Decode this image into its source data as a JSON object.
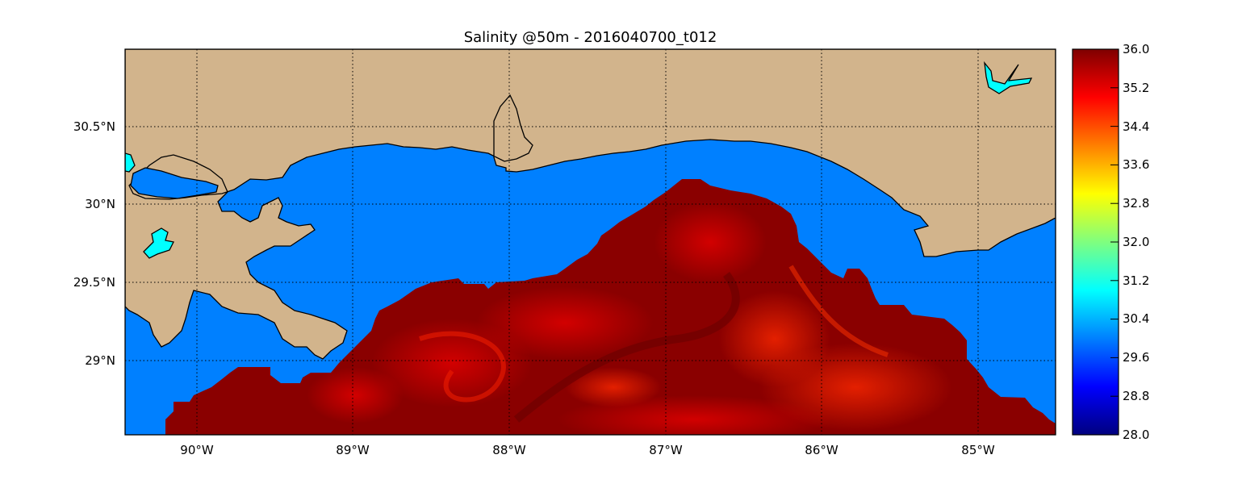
{
  "title": "Salinity @50m - 2016040700_t012",
  "map": {
    "lon_range": [
      -90.5,
      -84.5
    ],
    "lat_range": [
      28.55,
      31.0
    ],
    "lon_ticks": [
      "90°W",
      "89°W",
      "88°W",
      "87°W",
      "86°W",
      "85°W"
    ],
    "lat_ticks": [
      "30.5°N",
      "30°N",
      "29.5°N",
      "29°N"
    ],
    "grid": "dotted",
    "colors": {
      "land": "#d2b48c",
      "water_fill": "#0080ff",
      "lake_fill": "#00ffff",
      "salinity_high": "#800000",
      "salinity_mid": "#cc0000"
    }
  },
  "colorbar": {
    "min": 28.0,
    "max": 36.0,
    "colormap": "jet",
    "tick_labels": [
      "36.0",
      "35.2",
      "34.4",
      "33.6",
      "32.8",
      "32.0",
      "31.2",
      "30.4",
      "29.6",
      "28.8",
      "28.0"
    ]
  }
}
